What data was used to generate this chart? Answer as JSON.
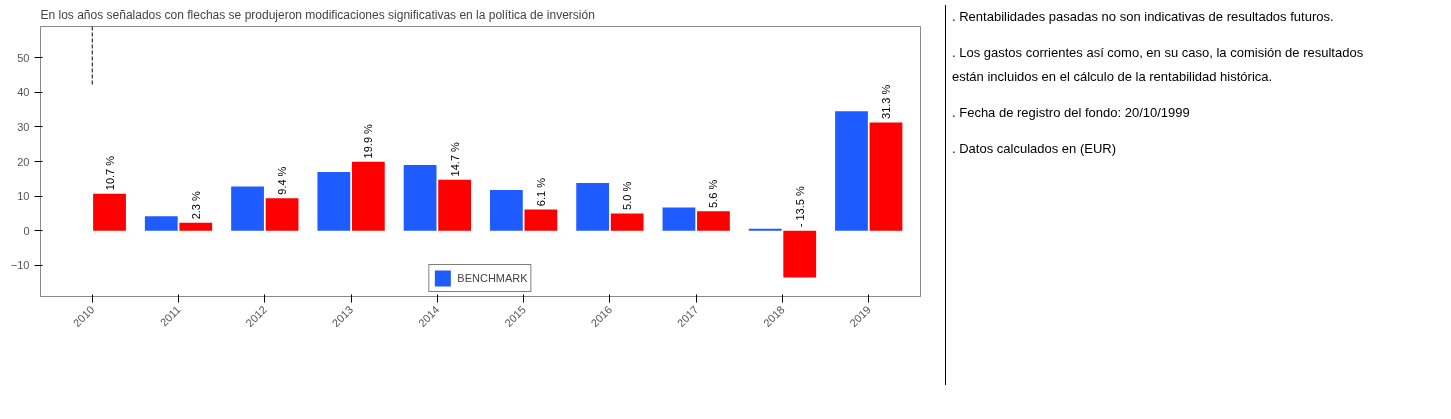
{
  "chart_data": {
    "type": "bar",
    "title": "En los años señalados con flechas se produjeron modificaciones significativas en la política de inversión",
    "categories": [
      "2010",
      "2011",
      "2012",
      "2013",
      "2014",
      "2015",
      "2016",
      "2017",
      "2018",
      "2019"
    ],
    "series": [
      {
        "name": "BENCHMARK",
        "color": "#1f5cff",
        "values": [
          null,
          4.2,
          12.8,
          17.0,
          19.0,
          11.8,
          13.8,
          6.7,
          0.6,
          34.5
        ]
      },
      {
        "color": "#ff0000",
        "values": [
          10.7,
          2.3,
          9.4,
          19.9,
          14.7,
          6.1,
          5.0,
          5.6,
          -13.5,
          31.3
        ],
        "value_labels": [
          "10.7 %",
          "2.3 %",
          "9.4 %",
          "19.9 %",
          "14.7 %",
          "6.1 %",
          "5.0 %",
          "5.6 %",
          "- 13.5 %",
          "31.3 %"
        ]
      }
    ],
    "ylim": [
      -19,
      59
    ],
    "yticks": [
      -10,
      0,
      10,
      20,
      30,
      40,
      50
    ],
    "grid": false,
    "legend": "bottom",
    "ref_lines": [
      {
        "axis": "x",
        "value": "2010",
        "line_style": "dashed",
        "color": "#000000"
      }
    ],
    "annotations": [
      ". Rentabilidades pasadas no son indicativas de resultados futuros.",
      ". Los gastos corrientes así como, en su caso, la comisión de resultados están incluidos en el cálculo de la rentabilidad histórica.",
      ". Fecha de registro del fondo: 20/10/1999",
      ". Datos calculados en (EUR)"
    ]
  }
}
